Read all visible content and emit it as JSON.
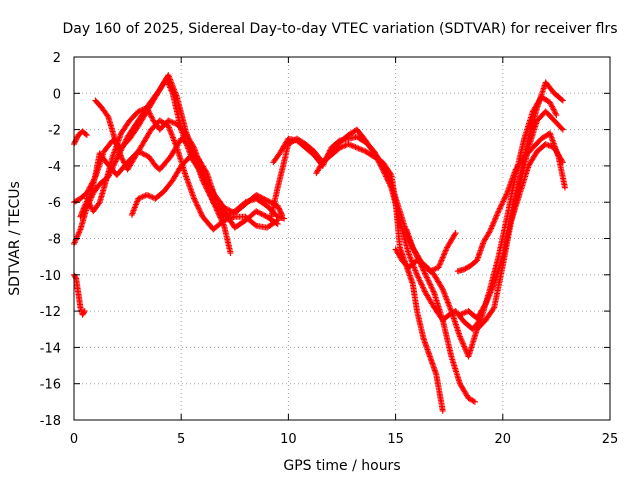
{
  "chart_data": {
    "type": "scatter",
    "title": "Day 160 of 2025, Sidereal Day-to-day VTEC variation (SDTVAR) for receiver flrs",
    "xlabel": "GPS time / hours",
    "ylabel": "SDTVAR / TECUs",
    "xlim": [
      0,
      25
    ],
    "ylim": [
      -18,
      2
    ],
    "x_ticks": [
      0,
      5,
      10,
      15,
      20,
      25
    ],
    "y_ticks": [
      -18,
      -16,
      -14,
      -12,
      -10,
      -8,
      -6,
      -4,
      -2,
      0,
      2
    ],
    "x_tick_labels": [
      "0",
      "5",
      "10",
      "15",
      "20",
      "25"
    ],
    "y_tick_labels": [
      "-18",
      "-16",
      "-14",
      "-12",
      "-10",
      "-8",
      "-6",
      "-4",
      "-2",
      "0",
      "2"
    ],
    "grid": true,
    "marker": "+",
    "color": "#ff0000",
    "series": [
      {
        "x": [
          0.0,
          0.2,
          0.4,
          0.6
        ],
        "y": [
          -2.8,
          -2.3,
          -2.1,
          -2.3
        ]
      },
      {
        "x": [
          0.0,
          0.3,
          0.6,
          0.9,
          1.2,
          1.6,
          2.0,
          2.5,
          3.0,
          3.5,
          4.0,
          4.3,
          4.6,
          5.0,
          5.5,
          6.0,
          6.5,
          7.0,
          7.5,
          8.0,
          8.5,
          9.0,
          9.5,
          9.7
        ],
        "y": [
          -8.3,
          -7.5,
          -6.3,
          -5.5,
          -5.0,
          -4.6,
          -3.6,
          -2.4,
          -1.5,
          -0.6,
          0.2,
          0.8,
          0.0,
          -2.0,
          -3.6,
          -4.5,
          -5.5,
          -6.3,
          -6.6,
          -6.1,
          -5.6,
          -5.9,
          -6.2,
          -6.7
        ]
      },
      {
        "x": [
          0.0,
          0.3,
          0.6,
          1.0,
          1.4,
          1.8,
          2.2,
          2.6,
          3.0,
          3.4,
          3.8,
          4.2,
          4.4,
          4.8,
          5.2,
          5.6,
          6.0,
          6.5,
          7.0,
          7.5,
          8.0,
          8.5,
          9.0,
          9.5,
          9.8
        ],
        "y": [
          -6.0,
          -5.8,
          -5.5,
          -4.6,
          -3.2,
          -2.6,
          -3.0,
          -2.5,
          -1.8,
          -1.0,
          -0.2,
          0.6,
          1.0,
          -0.2,
          -2.0,
          -3.5,
          -4.8,
          -6.0,
          -6.8,
          -6.5,
          -6.0,
          -5.8,
          -6.2,
          -6.8,
          -6.9
        ]
      },
      {
        "x": [
          0.3,
          0.5,
          0.8,
          1.0,
          1.2,
          1.5,
          2.0,
          2.5,
          3.0,
          3.5,
          3.8,
          4.0,
          4.5,
          5.0,
          5.5,
          6.0,
          6.5,
          7.0,
          7.5,
          8.0,
          8.5,
          9.0,
          9.5
        ],
        "y": [
          -6.8,
          -6.2,
          -5.5,
          -4.5,
          -3.3,
          -3.8,
          -4.5,
          -3.8,
          -3.2,
          -3.5,
          -4.0,
          -4.2,
          -3.5,
          -2.5,
          -3.0,
          -4.6,
          -5.5,
          -6.5,
          -7.4,
          -7.0,
          -6.5,
          -6.8,
          -7.2
        ]
      },
      {
        "x": [
          0.6,
          0.9,
          1.2,
          1.5,
          1.8,
          2.2,
          2.6,
          3.0,
          3.4,
          3.7,
          4.0,
          4.4,
          4.8,
          5.2,
          5.6,
          6.0,
          6.5,
          7.0,
          7.3
        ],
        "y": [
          -5.8,
          -6.5,
          -6.0,
          -4.8,
          -3.5,
          -2.2,
          -1.5,
          -1.0,
          -0.8,
          -1.5,
          -2.0,
          -1.5,
          -1.7,
          -2.2,
          -3.0,
          -4.3,
          -6.0,
          -7.3,
          -8.8
        ]
      },
      {
        "x": [
          1.0,
          1.3,
          1.6,
          1.9,
          2.2,
          2.5,
          2.8,
          3.2,
          3.6,
          4.0,
          4.4,
          4.8,
          5.2,
          5.6,
          6.0,
          6.5,
          7.0,
          7.5,
          8.0,
          8.5,
          9.0,
          9.5
        ],
        "y": [
          -0.4,
          -0.8,
          -1.3,
          -2.5,
          -3.5,
          -4.2,
          -3.6,
          -2.8,
          -2.0,
          -1.5,
          -1.8,
          -3.0,
          -4.5,
          -5.8,
          -6.8,
          -7.5,
          -7.0,
          -6.8,
          -6.8,
          -7.3,
          -7.4,
          -7.0
        ]
      },
      {
        "x": [
          2.7,
          3.0,
          3.4,
          3.8,
          4.2,
          4.6,
          5.0,
          5.4,
          5.8,
          6.2,
          6.6
        ],
        "y": [
          -6.7,
          -5.8,
          -5.6,
          -5.8,
          -5.4,
          -4.8,
          -4.0,
          -3.5,
          -3.6,
          -4.4,
          -5.8
        ]
      },
      {
        "x": [
          0.0,
          0.1,
          0.2,
          0.3,
          0.4,
          0.5
        ],
        "y": [
          -10.0,
          -10.2,
          -11.0,
          -11.8,
          -12.2,
          -12.0
        ]
      },
      {
        "x": [
          9.2,
          9.5,
          10.0,
          10.4,
          10.8,
          11.2,
          11.6,
          12.0,
          12.4,
          12.8,
          13.2,
          13.6,
          14.0,
          14.4,
          14.8,
          15.0,
          15.2,
          15.5,
          15.8,
          16.0,
          16.3,
          16.6,
          16.9,
          17.2
        ],
        "y": [
          -6.8,
          -5.2,
          -2.8,
          -2.5,
          -2.8,
          -3.2,
          -3.8,
          -3.4,
          -3.0,
          -2.8,
          -3.0,
          -3.2,
          -3.5,
          -3.8,
          -4.5,
          -6.0,
          -8.5,
          -9.5,
          -10.5,
          -12.0,
          -13.5,
          -14.5,
          -15.5,
          -17.5
        ]
      },
      {
        "x": [
          9.3,
          9.6,
          10.0,
          10.4,
          10.8,
          11.2,
          11.6,
          12.0,
          12.4,
          12.8,
          13.2,
          13.6,
          14.0,
          14.4,
          14.8,
          15.2,
          15.6,
          16.0,
          16.4,
          16.8,
          17.2,
          17.6,
          18.0,
          18.4,
          18.7
        ],
        "y": [
          -3.8,
          -3.3,
          -2.5,
          -2.6,
          -3.0,
          -3.4,
          -4.0,
          -3.0,
          -2.6,
          -2.5,
          -2.4,
          -2.7,
          -3.2,
          -4.0,
          -5.0,
          -6.5,
          -8.0,
          -9.0,
          -10.0,
          -11.0,
          -12.5,
          -14.5,
          -16.0,
          -16.8,
          -17.0
        ]
      },
      {
        "x": [
          11.3,
          11.6,
          12.0,
          12.4,
          12.8,
          13.2,
          13.6,
          14.0,
          14.4,
          14.8,
          15.2,
          15.6,
          16.0,
          16.4,
          16.8,
          17.2,
          17.5,
          17.8,
          18.2,
          18.6,
          19.0,
          19.4,
          19.8,
          20.2,
          20.6,
          21.0,
          21.4,
          21.8,
          22.2,
          22.5
        ],
        "y": [
          -4.4,
          -3.8,
          -3.2,
          -2.7,
          -2.3,
          -2.0,
          -2.6,
          -3.3,
          -4.2,
          -5.2,
          -7.0,
          -8.8,
          -10.0,
          -11.0,
          -11.8,
          -12.5,
          -12.2,
          -12.0,
          -12.6,
          -13.0,
          -12.4,
          -10.8,
          -9.0,
          -6.8,
          -4.5,
          -2.5,
          -1.0,
          -0.2,
          -0.5,
          -1.2
        ]
      },
      {
        "x": [
          15.0,
          15.3,
          15.6,
          16.0,
          16.4,
          16.8,
          17.2,
          17.6,
          18.0,
          18.4,
          18.8,
          19.2,
          19.6,
          20.0,
          20.4,
          20.8,
          21.2,
          21.6,
          22.0,
          22.4,
          22.8
        ],
        "y": [
          -8.6,
          -9.2,
          -9.6,
          -9.2,
          -9.5,
          -10.0,
          -10.8,
          -12.0,
          -13.4,
          -14.5,
          -13.0,
          -12.5,
          -11.8,
          -9.5,
          -7.0,
          -5.0,
          -3.0,
          -1.5,
          -1.0,
          -1.5,
          -2.0
        ]
      },
      {
        "x": [
          15.5,
          15.8,
          16.2,
          16.6,
          17.0,
          17.4,
          17.8
        ],
        "y": [
          -7.5,
          -8.5,
          -9.3,
          -9.8,
          -9.6,
          -8.5,
          -7.7
        ]
      },
      {
        "x": [
          17.9,
          18.2,
          18.5,
          18.8,
          19.1,
          19.4,
          19.8,
          20.2,
          20.6,
          21.0,
          21.4,
          21.8,
          22.2,
          22.6,
          22.9
        ],
        "y": [
          -9.8,
          -9.7,
          -9.5,
          -9.2,
          -8.2,
          -7.6,
          -6.5,
          -5.5,
          -4.2,
          -3.5,
          -3.0,
          -2.5,
          -2.2,
          -3.5,
          -5.2
        ]
      },
      {
        "x": [
          18.0,
          18.4,
          18.8,
          19.2,
          19.6,
          20.0,
          20.4,
          20.8,
          21.2,
          21.6,
          22.0,
          22.4,
          22.8
        ],
        "y": [
          -12.2,
          -12.0,
          -12.4,
          -11.6,
          -10.5,
          -9.0,
          -6.8,
          -4.6,
          -2.5,
          -0.8,
          0.6,
          0.0,
          -0.4
        ]
      },
      {
        "x": [
          20.4,
          20.8,
          21.2,
          21.6,
          22.0,
          22.4,
          22.8
        ],
        "y": [
          -7.0,
          -5.5,
          -4.0,
          -3.2,
          -2.8,
          -3.0,
          -3.8
        ]
      }
    ]
  }
}
